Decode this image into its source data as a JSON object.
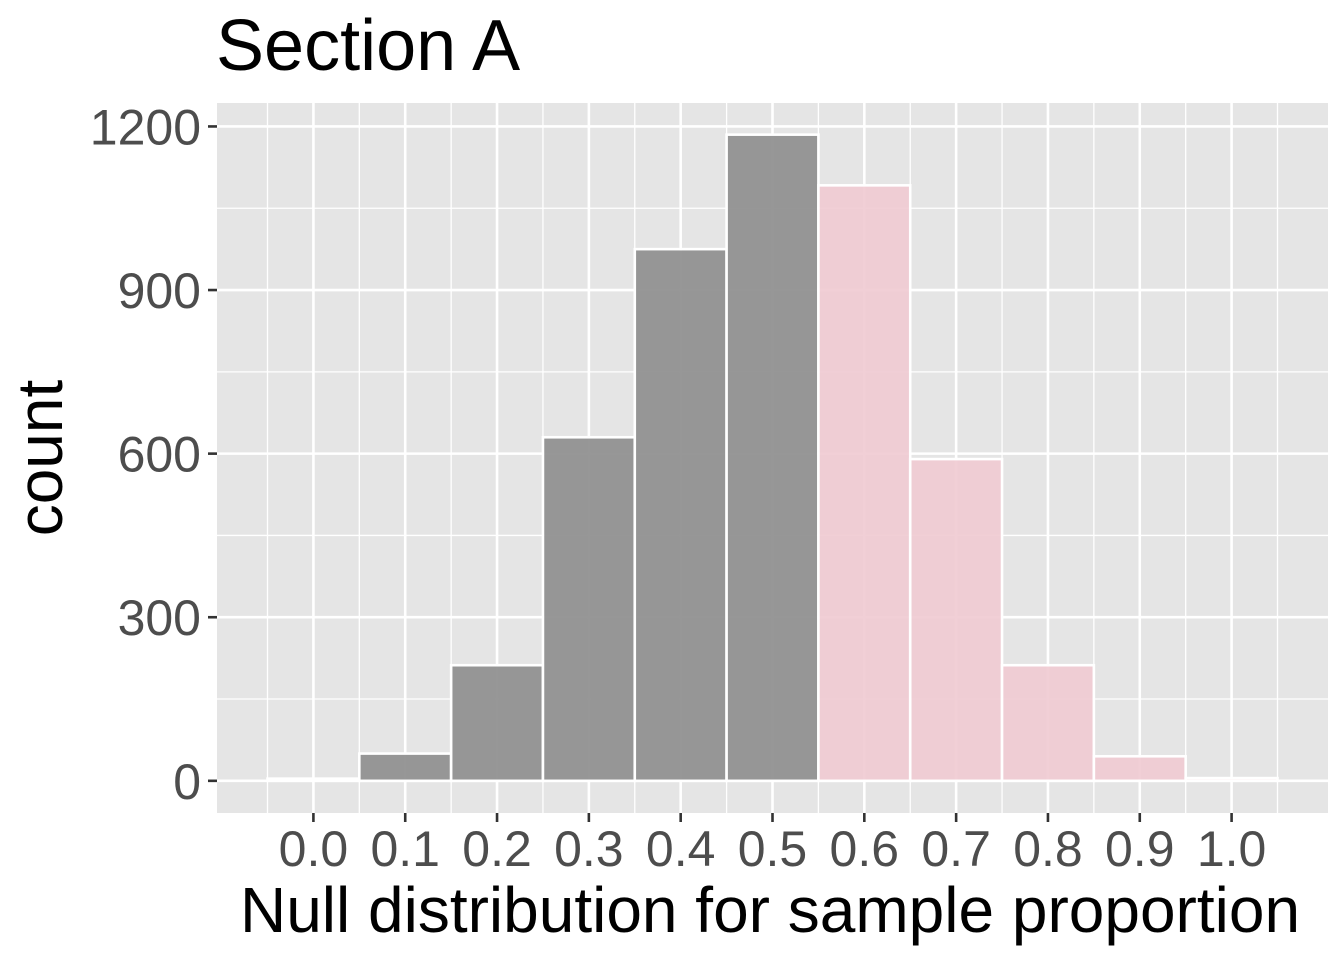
{
  "chart_data": {
    "type": "bar",
    "title": "Section A",
    "xlabel": "Null distribution for sample proportion",
    "ylabel": "count",
    "bin_width": 0.1,
    "bin_centers": [
      0.0,
      0.1,
      0.2,
      0.3,
      0.4,
      0.5,
      0.6,
      0.7,
      0.8,
      0.9,
      1.0
    ],
    "counts": [
      4,
      50,
      212,
      630,
      975,
      1185,
      1092,
      590,
      212,
      45,
      5
    ],
    "shaded": [
      false,
      false,
      false,
      false,
      false,
      false,
      true,
      true,
      true,
      true,
      true
    ],
    "x_ticks": [
      "0.0",
      "0.1",
      "0.2",
      "0.3",
      "0.4",
      "0.5",
      "0.6",
      "0.7",
      "0.8",
      "0.9",
      "1.0"
    ],
    "y_ticks": [
      0,
      300,
      600,
      900,
      1200
    ],
    "xlim": [
      -0.105,
      1.105
    ],
    "ylim": [
      -59,
      1243
    ],
    "grid": true,
    "colors": {
      "panel": "#e5e5e5",
      "grid": "#ffffff",
      "bar_default": "#919191",
      "bar_shaded": "#f0cad2",
      "bar_outline": "#ffffff"
    }
  }
}
